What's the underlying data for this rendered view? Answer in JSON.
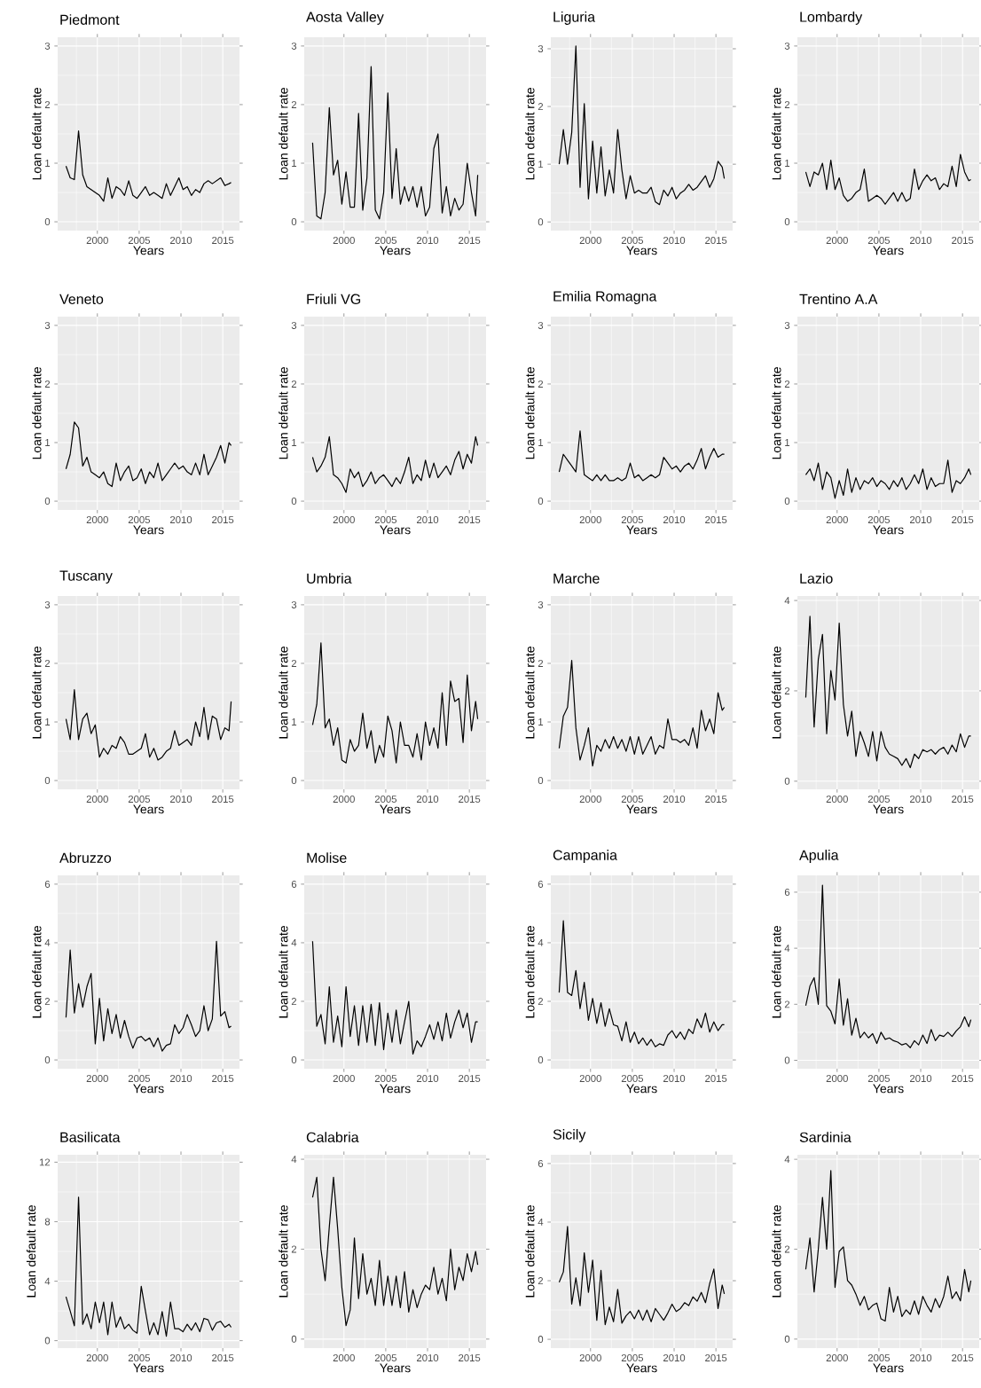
{
  "chart_data": [
    {
      "type": "line",
      "title": "Piedmont",
      "xlabel": "Years",
      "ylabel": "Loan default rate",
      "color": "#000000",
      "grid": true,
      "xlim": [
        1995.25,
        2017.0
      ],
      "ylim": [
        -0.15,
        3.15
      ],
      "xticks": [
        2000,
        2005,
        2010,
        2015
      ],
      "yticks": [
        0,
        1,
        2,
        3
      ],
      "x": [
        1996.25,
        1996.75,
        1997.25,
        1997.75,
        1998.25,
        1998.75,
        1999.25,
        1999.75,
        2000.25,
        2000.75,
        2001.25,
        2001.75,
        2002.25,
        2002.75,
        2003.25,
        2003.75,
        2004.25,
        2004.75,
        2005.25,
        2005.75,
        2006.25,
        2006.75,
        2007.25,
        2007.75,
        2008.25,
        2008.75,
        2009.25,
        2009.75,
        2010.25,
        2010.75,
        2011.25,
        2011.75,
        2012.25,
        2012.75,
        2013.25,
        2013.75,
        2014.25,
        2014.75,
        2015.25,
        2015.75,
        2016.0
      ],
      "values": [
        0.95,
        0.75,
        0.72,
        1.55,
        0.8,
        0.6,
        0.55,
        0.5,
        0.45,
        0.35,
        0.75,
        0.4,
        0.6,
        0.55,
        0.45,
        0.7,
        0.45,
        0.4,
        0.5,
        0.6,
        0.45,
        0.5,
        0.45,
        0.4,
        0.65,
        0.45,
        0.6,
        0.75,
        0.55,
        0.6,
        0.45,
        0.55,
        0.5,
        0.65,
        0.7,
        0.65,
        0.7,
        0.75,
        0.62,
        0.65,
        0.67
      ]
    },
    {
      "type": "line",
      "title": "Aosta Valley",
      "xlabel": "Years",
      "ylabel": "Loan default rate",
      "color": "#000000",
      "grid": true,
      "xlim": [
        1995.25,
        2017.0
      ],
      "ylim": [
        -0.15,
        3.15
      ],
      "xticks": [
        2000,
        2005,
        2010,
        2015
      ],
      "yticks": [
        0,
        1,
        2,
        3
      ],
      "x": [
        1996.25,
        1996.75,
        1997.25,
        1997.75,
        1998.25,
        1998.75,
        1999.25,
        1999.75,
        2000.25,
        2000.75,
        2001.25,
        2001.75,
        2002.25,
        2002.75,
        2003.25,
        2003.75,
        2004.25,
        2004.75,
        2005.25,
        2005.75,
        2006.25,
        2006.75,
        2007.25,
        2007.75,
        2008.25,
        2008.75,
        2009.25,
        2009.75,
        2010.25,
        2010.75,
        2011.25,
        2011.75,
        2012.25,
        2012.75,
        2013.25,
        2013.75,
        2014.25,
        2014.75,
        2015.25,
        2015.75,
        2016.0
      ],
      "values": [
        1.35,
        0.1,
        0.05,
        0.5,
        1.95,
        0.8,
        1.05,
        0.3,
        0.85,
        0.25,
        0.25,
        1.85,
        0.2,
        0.75,
        2.65,
        0.2,
        0.05,
        0.5,
        2.2,
        0.4,
        1.25,
        0.3,
        0.6,
        0.35,
        0.6,
        0.25,
        0.6,
        0.1,
        0.25,
        1.25,
        1.5,
        0.15,
        0.6,
        0.1,
        0.4,
        0.2,
        0.3,
        1.0,
        0.5,
        0.1,
        0.8
      ]
    },
    {
      "type": "line",
      "title": "Liguria",
      "xlabel": "Years",
      "ylabel": "Loan default rate",
      "color": "#000000",
      "grid": true,
      "xlim": [
        1995.25,
        2017.0
      ],
      "ylim": [
        -0.15,
        3.2
      ],
      "xticks": [
        2000,
        2005,
        2010,
        2015
      ],
      "yticks": [
        0,
        1,
        2,
        3
      ],
      "x": [
        1996.25,
        1996.75,
        1997.25,
        1997.75,
        1998.25,
        1998.75,
        1999.25,
        1999.75,
        2000.25,
        2000.75,
        2001.25,
        2001.75,
        2002.25,
        2002.75,
        2003.25,
        2003.75,
        2004.25,
        2004.75,
        2005.25,
        2005.75,
        2006.25,
        2006.75,
        2007.25,
        2007.75,
        2008.25,
        2008.75,
        2009.25,
        2009.75,
        2010.25,
        2010.75,
        2011.25,
        2011.75,
        2012.25,
        2012.75,
        2013.25,
        2013.75,
        2014.25,
        2014.75,
        2015.25,
        2015.75,
        2016.0
      ],
      "values": [
        1.0,
        1.6,
        1.0,
        1.55,
        3.05,
        0.6,
        2.05,
        0.4,
        1.4,
        0.5,
        1.3,
        0.45,
        0.9,
        0.5,
        1.6,
        0.9,
        0.4,
        0.8,
        0.5,
        0.55,
        0.5,
        0.5,
        0.6,
        0.35,
        0.3,
        0.55,
        0.45,
        0.6,
        0.4,
        0.5,
        0.55,
        0.65,
        0.55,
        0.6,
        0.7,
        0.8,
        0.6,
        0.75,
        1.05,
        0.95,
        0.75
      ]
    },
    {
      "type": "line",
      "title": "Lombardy",
      "xlabel": "Years",
      "ylabel": "Loan default rate",
      "color": "#000000",
      "grid": true,
      "xlim": [
        1995.25,
        2017.0
      ],
      "ylim": [
        -0.15,
        3.15
      ],
      "xticks": [
        2000,
        2005,
        2010,
        2015
      ],
      "yticks": [
        0,
        1,
        2,
        3
      ],
      "x": [
        1996.25,
        1996.75,
        1997.25,
        1997.75,
        1998.25,
        1998.75,
        1999.25,
        1999.75,
        2000.25,
        2000.75,
        2001.25,
        2001.75,
        2002.25,
        2002.75,
        2003.25,
        2003.75,
        2004.25,
        2004.75,
        2005.25,
        2005.75,
        2006.25,
        2006.75,
        2007.25,
        2007.75,
        2008.25,
        2008.75,
        2009.25,
        2009.75,
        2010.25,
        2010.75,
        2011.25,
        2011.75,
        2012.25,
        2012.75,
        2013.25,
        2013.75,
        2014.25,
        2014.75,
        2015.25,
        2015.75,
        2016.0
      ],
      "values": [
        0.85,
        0.6,
        0.85,
        0.8,
        1.0,
        0.55,
        1.05,
        0.55,
        0.75,
        0.45,
        0.35,
        0.4,
        0.5,
        0.55,
        0.9,
        0.35,
        0.4,
        0.45,
        0.4,
        0.3,
        0.4,
        0.5,
        0.35,
        0.5,
        0.35,
        0.4,
        0.9,
        0.55,
        0.7,
        0.8,
        0.7,
        0.75,
        0.55,
        0.65,
        0.6,
        0.95,
        0.6,
        1.15,
        0.85,
        0.7,
        0.72
      ]
    },
    {
      "type": "line",
      "title": "Veneto",
      "xlabel": "Years",
      "ylabel": "Loan default rate",
      "color": "#000000",
      "grid": true,
      "xlim": [
        1995.25,
        2017.0
      ],
      "ylim": [
        -0.15,
        3.15
      ],
      "xticks": [
        2000,
        2005,
        2010,
        2015
      ],
      "yticks": [
        0,
        1,
        2,
        3
      ],
      "x": [
        1996.25,
        1996.75,
        1997.25,
        1997.75,
        1998.25,
        1998.75,
        1999.25,
        1999.75,
        2000.25,
        2000.75,
        2001.25,
        2001.75,
        2002.25,
        2002.75,
        2003.25,
        2003.75,
        2004.25,
        2004.75,
        2005.25,
        2005.75,
        2006.25,
        2006.75,
        2007.25,
        2007.75,
        2008.25,
        2008.75,
        2009.25,
        2009.75,
        2010.25,
        2010.75,
        2011.25,
        2011.75,
        2012.25,
        2012.75,
        2013.25,
        2013.75,
        2014.25,
        2014.75,
        2015.25,
        2015.75,
        2016.0
      ],
      "values": [
        0.55,
        0.8,
        1.35,
        1.25,
        0.6,
        0.75,
        0.5,
        0.45,
        0.4,
        0.5,
        0.3,
        0.25,
        0.65,
        0.35,
        0.5,
        0.6,
        0.35,
        0.4,
        0.55,
        0.3,
        0.5,
        0.4,
        0.65,
        0.35,
        0.45,
        0.55,
        0.65,
        0.55,
        0.6,
        0.5,
        0.45,
        0.65,
        0.45,
        0.8,
        0.45,
        0.6,
        0.75,
        0.95,
        0.65,
        1.0,
        0.95
      ]
    },
    {
      "type": "line",
      "title": "Friuli VG",
      "xlabel": "Years",
      "ylabel": "Loan default rate",
      "color": "#000000",
      "grid": true,
      "xlim": [
        1995.25,
        2017.0
      ],
      "ylim": [
        -0.15,
        3.15
      ],
      "xticks": [
        2000,
        2005,
        2010,
        2015
      ],
      "yticks": [
        0,
        1,
        2,
        3
      ],
      "x": [
        1996.25,
        1996.75,
        1997.25,
        1997.75,
        1998.25,
        1998.75,
        1999.25,
        1999.75,
        2000.25,
        2000.75,
        2001.25,
        2001.75,
        2002.25,
        2002.75,
        2003.25,
        2003.75,
        2004.25,
        2004.75,
        2005.25,
        2005.75,
        2006.25,
        2006.75,
        2007.25,
        2007.75,
        2008.25,
        2008.75,
        2009.25,
        2009.75,
        2010.25,
        2010.75,
        2011.25,
        2011.75,
        2012.25,
        2012.75,
        2013.25,
        2013.75,
        2014.25,
        2014.75,
        2015.25,
        2015.75,
        2016.0
      ],
      "values": [
        0.75,
        0.5,
        0.6,
        0.75,
        1.1,
        0.45,
        0.4,
        0.3,
        0.15,
        0.55,
        0.4,
        0.5,
        0.25,
        0.35,
        0.5,
        0.3,
        0.4,
        0.45,
        0.35,
        0.25,
        0.4,
        0.3,
        0.5,
        0.75,
        0.3,
        0.45,
        0.35,
        0.7,
        0.4,
        0.65,
        0.4,
        0.5,
        0.6,
        0.45,
        0.7,
        0.85,
        0.55,
        0.8,
        0.65,
        1.1,
        0.95
      ]
    },
    {
      "type": "line",
      "title": "Emilia Romagna",
      "xlabel": "Years",
      "ylabel": "Loan default rate",
      "color": "#000000",
      "grid": true,
      "xlim": [
        1995.25,
        2017.0
      ],
      "ylim": [
        -0.15,
        3.15
      ],
      "xticks": [
        2000,
        2005,
        2010,
        2015
      ],
      "yticks": [
        0,
        1,
        2,
        3
      ],
      "x": [
        1996.25,
        1996.75,
        1997.25,
        1997.75,
        1998.25,
        1998.75,
        1999.25,
        1999.75,
        2000.25,
        2000.75,
        2001.25,
        2001.75,
        2002.25,
        2002.75,
        2003.25,
        2003.75,
        2004.25,
        2004.75,
        2005.25,
        2005.75,
        2006.25,
        2006.75,
        2007.25,
        2007.75,
        2008.25,
        2008.75,
        2009.25,
        2009.75,
        2010.25,
        2010.75,
        2011.25,
        2011.75,
        2012.25,
        2012.75,
        2013.25,
        2013.75,
        2014.25,
        2014.75,
        2015.25,
        2015.75,
        2016.0
      ],
      "values": [
        0.5,
        0.8,
        0.7,
        0.6,
        0.5,
        1.2,
        0.45,
        0.4,
        0.35,
        0.45,
        0.35,
        0.45,
        0.35,
        0.35,
        0.4,
        0.35,
        0.4,
        0.65,
        0.4,
        0.45,
        0.35,
        0.4,
        0.45,
        0.4,
        0.45,
        0.75,
        0.65,
        0.55,
        0.6,
        0.5,
        0.6,
        0.65,
        0.55,
        0.7,
        0.9,
        0.55,
        0.75,
        0.9,
        0.75,
        0.8,
        0.8
      ]
    },
    {
      "type": "line",
      "title": "Trentino A.A",
      "xlabel": "Years",
      "ylabel": "Loan default rate",
      "color": "#000000",
      "grid": true,
      "xlim": [
        1995.25,
        2017.0
      ],
      "ylim": [
        -0.15,
        3.15
      ],
      "xticks": [
        2000,
        2005,
        2010,
        2015
      ],
      "yticks": [
        0,
        1,
        2,
        3
      ],
      "x": [
        1996.25,
        1996.75,
        1997.25,
        1997.75,
        1998.25,
        1998.75,
        1999.25,
        1999.75,
        2000.25,
        2000.75,
        2001.25,
        2001.75,
        2002.25,
        2002.75,
        2003.25,
        2003.75,
        2004.25,
        2004.75,
        2005.25,
        2005.75,
        2006.25,
        2006.75,
        2007.25,
        2007.75,
        2008.25,
        2008.75,
        2009.25,
        2009.75,
        2010.25,
        2010.75,
        2011.25,
        2011.75,
        2012.25,
        2012.75,
        2013.25,
        2013.75,
        2014.25,
        2014.75,
        2015.25,
        2015.75,
        2016.0
      ],
      "values": [
        0.45,
        0.55,
        0.35,
        0.65,
        0.2,
        0.5,
        0.4,
        0.05,
        0.35,
        0.1,
        0.55,
        0.15,
        0.4,
        0.2,
        0.35,
        0.3,
        0.4,
        0.25,
        0.35,
        0.3,
        0.2,
        0.35,
        0.25,
        0.4,
        0.2,
        0.3,
        0.45,
        0.3,
        0.55,
        0.2,
        0.4,
        0.25,
        0.3,
        0.3,
        0.7,
        0.15,
        0.35,
        0.3,
        0.4,
        0.55,
        0.45
      ]
    },
    {
      "type": "line",
      "title": "Tuscany",
      "xlabel": "Years",
      "ylabel": "Loan default rate",
      "color": "#000000",
      "grid": true,
      "xlim": [
        1995.25,
        2017.0
      ],
      "ylim": [
        -0.15,
        3.15
      ],
      "xticks": [
        2000,
        2005,
        2010,
        2015
      ],
      "yticks": [
        0,
        1,
        2,
        3
      ],
      "x": [
        1996.25,
        1996.75,
        1997.25,
        1997.75,
        1998.25,
        1998.75,
        1999.25,
        1999.75,
        2000.25,
        2000.75,
        2001.25,
        2001.75,
        2002.25,
        2002.75,
        2003.25,
        2003.75,
        2004.25,
        2004.75,
        2005.25,
        2005.75,
        2006.25,
        2006.75,
        2007.25,
        2007.75,
        2008.25,
        2008.75,
        2009.25,
        2009.75,
        2010.25,
        2010.75,
        2011.25,
        2011.75,
        2012.25,
        2012.75,
        2013.25,
        2013.75,
        2014.25,
        2014.75,
        2015.25,
        2015.75,
        2016.0
      ],
      "values": [
        1.05,
        0.7,
        1.55,
        0.7,
        1.05,
        1.15,
        0.8,
        0.95,
        0.4,
        0.55,
        0.45,
        0.6,
        0.55,
        0.75,
        0.65,
        0.45,
        0.45,
        0.5,
        0.55,
        0.8,
        0.4,
        0.55,
        0.35,
        0.4,
        0.5,
        0.55,
        0.85,
        0.6,
        0.65,
        0.7,
        0.6,
        1.0,
        0.75,
        1.25,
        0.7,
        1.1,
        1.05,
        0.7,
        0.9,
        0.85,
        1.35
      ]
    },
    {
      "type": "line",
      "title": "Umbria",
      "xlabel": "Years",
      "ylabel": "Loan default rate",
      "color": "#000000",
      "grid": true,
      "xlim": [
        1995.25,
        2017.0
      ],
      "ylim": [
        -0.15,
        3.15
      ],
      "xticks": [
        2000,
        2005,
        2010,
        2015
      ],
      "yticks": [
        0,
        1,
        2,
        3
      ],
      "x": [
        1996.25,
        1996.75,
        1997.25,
        1997.75,
        1998.25,
        1998.75,
        1999.25,
        1999.75,
        2000.25,
        2000.75,
        2001.25,
        2001.75,
        2002.25,
        2002.75,
        2003.25,
        2003.75,
        2004.25,
        2004.75,
        2005.25,
        2005.75,
        2006.25,
        2006.75,
        2007.25,
        2007.75,
        2008.25,
        2008.75,
        2009.25,
        2009.75,
        2010.25,
        2010.75,
        2011.25,
        2011.75,
        2012.25,
        2012.75,
        2013.25,
        2013.75,
        2014.25,
        2014.75,
        2015.25,
        2015.75,
        2016.0
      ],
      "values": [
        0.95,
        1.3,
        2.35,
        0.9,
        1.05,
        0.6,
        0.9,
        0.35,
        0.3,
        0.7,
        0.5,
        0.6,
        1.15,
        0.55,
        0.85,
        0.3,
        0.6,
        0.4,
        1.1,
        0.85,
        0.3,
        1.0,
        0.6,
        0.6,
        0.4,
        0.8,
        0.35,
        1.0,
        0.6,
        0.9,
        0.55,
        1.5,
        0.6,
        1.7,
        1.35,
        1.4,
        0.65,
        1.8,
        0.85,
        1.35,
        1.05
      ]
    },
    {
      "type": "line",
      "title": "Marche",
      "xlabel": "Years",
      "ylabel": "Loan default rate",
      "color": "#000000",
      "grid": true,
      "xlim": [
        1995.25,
        2017.0
      ],
      "ylim": [
        -0.15,
        3.15
      ],
      "xticks": [
        2000,
        2005,
        2010,
        2015
      ],
      "yticks": [
        0,
        1,
        2,
        3
      ],
      "x": [
        1996.25,
        1996.75,
        1997.25,
        1997.75,
        1998.25,
        1998.75,
        1999.25,
        1999.75,
        2000.25,
        2000.75,
        2001.25,
        2001.75,
        2002.25,
        2002.75,
        2003.25,
        2003.75,
        2004.25,
        2004.75,
        2005.25,
        2005.75,
        2006.25,
        2006.75,
        2007.25,
        2007.75,
        2008.25,
        2008.75,
        2009.25,
        2009.75,
        2010.25,
        2010.75,
        2011.25,
        2011.75,
        2012.25,
        2012.75,
        2013.25,
        2013.75,
        2014.25,
        2014.75,
        2015.25,
        2015.75,
        2016.0
      ],
      "values": [
        0.55,
        1.1,
        1.25,
        2.05,
        0.9,
        0.35,
        0.6,
        0.9,
        0.25,
        0.6,
        0.5,
        0.7,
        0.55,
        0.75,
        0.55,
        0.7,
        0.5,
        0.75,
        0.45,
        0.75,
        0.45,
        0.6,
        0.75,
        0.45,
        0.6,
        0.55,
        1.05,
        0.7,
        0.7,
        0.65,
        0.7,
        0.6,
        0.9,
        0.55,
        1.2,
        0.85,
        1.05,
        0.8,
        1.5,
        1.2,
        1.25
      ]
    },
    {
      "type": "line",
      "title": "Lazio",
      "xlabel": "Years",
      "ylabel": "Loan default rate",
      "color": "#000000",
      "grid": true,
      "xlim": [
        1995.25,
        2017.0
      ],
      "ylim": [
        -0.18,
        4.1
      ],
      "xticks": [
        2000,
        2005,
        2010,
        2015
      ],
      "yticks": [
        0,
        2,
        4
      ],
      "x": [
        1996.25,
        1996.75,
        1997.25,
        1997.75,
        1998.25,
        1998.75,
        1999.25,
        1999.75,
        2000.25,
        2000.75,
        2001.25,
        2001.75,
        2002.25,
        2002.75,
        2003.25,
        2003.75,
        2004.25,
        2004.75,
        2005.25,
        2005.75,
        2006.25,
        2006.75,
        2007.25,
        2007.75,
        2008.25,
        2008.75,
        2009.25,
        2009.75,
        2010.25,
        2010.75,
        2011.25,
        2011.75,
        2012.25,
        2012.75,
        2013.25,
        2013.75,
        2014.25,
        2014.75,
        2015.25,
        2015.75,
        2016.0
      ],
      "values": [
        1.85,
        3.65,
        1.2,
        2.7,
        3.25,
        1.05,
        2.45,
        1.8,
        3.5,
        1.7,
        1.0,
        1.55,
        0.55,
        1.1,
        0.85,
        0.55,
        1.1,
        0.45,
        1.1,
        0.75,
        0.6,
        0.55,
        0.5,
        0.35,
        0.5,
        0.3,
        0.6,
        0.5,
        0.7,
        0.65,
        0.7,
        0.6,
        0.7,
        0.75,
        0.6,
        0.8,
        0.65,
        1.05,
        0.75,
        1.0,
        1.0
      ]
    },
    {
      "type": "line",
      "title": "Abruzzo",
      "xlabel": "Years",
      "ylabel": "Loan default rate",
      "color": "#000000",
      "grid": true,
      "xlim": [
        1995.25,
        2017.0
      ],
      "ylim": [
        -0.3,
        6.3
      ],
      "xticks": [
        2000,
        2005,
        2010,
        2015
      ],
      "yticks": [
        0,
        2,
        4,
        6
      ],
      "x": [
        1996.25,
        1996.75,
        1997.25,
        1997.75,
        1998.25,
        1998.75,
        1999.25,
        1999.75,
        2000.25,
        2000.75,
        2001.25,
        2001.75,
        2002.25,
        2002.75,
        2003.25,
        2003.75,
        2004.25,
        2004.75,
        2005.25,
        2005.75,
        2006.25,
        2006.75,
        2007.25,
        2007.75,
        2008.25,
        2008.75,
        2009.25,
        2009.75,
        2010.25,
        2010.75,
        2011.25,
        2011.75,
        2012.25,
        2012.75,
        2013.25,
        2013.75,
        2014.25,
        2014.75,
        2015.25,
        2015.75,
        2016.0
      ],
      "values": [
        1.45,
        3.75,
        1.6,
        2.6,
        1.8,
        2.5,
        2.95,
        0.55,
        2.1,
        0.65,
        1.75,
        0.9,
        1.55,
        0.75,
        1.35,
        0.8,
        0.4,
        0.75,
        0.8,
        0.65,
        0.75,
        0.45,
        0.75,
        0.3,
        0.5,
        0.55,
        1.2,
        0.9,
        1.1,
        1.55,
        1.2,
        0.8,
        1.0,
        1.85,
        1.0,
        1.4,
        4.05,
        1.5,
        1.65,
        1.1,
        1.15
      ]
    },
    {
      "type": "line",
      "title": "Molise",
      "xlabel": "Years",
      "ylabel": "Loan default rate",
      "color": "#000000",
      "grid": true,
      "xlim": [
        1995.25,
        2017.0
      ],
      "ylim": [
        -0.3,
        6.3
      ],
      "xticks": [
        2000,
        2005,
        2010,
        2015
      ],
      "yticks": [
        0,
        2,
        4,
        6
      ],
      "x": [
        1996.25,
        1996.75,
        1997.25,
        1997.75,
        1998.25,
        1998.75,
        1999.25,
        1999.75,
        2000.25,
        2000.75,
        2001.25,
        2001.75,
        2002.25,
        2002.75,
        2003.25,
        2003.75,
        2004.25,
        2004.75,
        2005.25,
        2005.75,
        2006.25,
        2006.75,
        2007.25,
        2007.75,
        2008.25,
        2008.75,
        2009.25,
        2009.75,
        2010.25,
        2010.75,
        2011.25,
        2011.75,
        2012.25,
        2012.75,
        2013.25,
        2013.75,
        2014.25,
        2014.75,
        2015.25,
        2015.75,
        2016.0
      ],
      "values": [
        4.05,
        1.15,
        1.55,
        0.55,
        2.5,
        0.6,
        1.5,
        0.45,
        2.5,
        0.8,
        1.85,
        0.5,
        1.85,
        0.6,
        1.9,
        0.5,
        1.95,
        0.35,
        1.6,
        0.6,
        1.7,
        0.55,
        1.3,
        2.0,
        0.2,
        0.65,
        0.45,
        0.8,
        1.2,
        0.7,
        1.3,
        0.65,
        1.6,
        0.75,
        1.3,
        1.7,
        1.1,
        1.6,
        0.6,
        1.3,
        1.3
      ]
    },
    {
      "type": "line",
      "title": "Campania",
      "xlabel": "Years",
      "ylabel": "Loan default rate",
      "color": "#000000",
      "grid": true,
      "xlim": [
        1995.25,
        2017.0
      ],
      "ylim": [
        -0.3,
        6.3
      ],
      "xticks": [
        2000,
        2005,
        2010,
        2015
      ],
      "yticks": [
        0,
        2,
        4,
        6
      ],
      "x": [
        1996.25,
        1996.75,
        1997.25,
        1997.75,
        1998.25,
        1998.75,
        1999.25,
        1999.75,
        2000.25,
        2000.75,
        2001.25,
        2001.75,
        2002.25,
        2002.75,
        2003.25,
        2003.75,
        2004.25,
        2004.75,
        2005.25,
        2005.75,
        2006.25,
        2006.75,
        2007.25,
        2007.75,
        2008.25,
        2008.75,
        2009.25,
        2009.75,
        2010.25,
        2010.75,
        2011.25,
        2011.75,
        2012.25,
        2012.75,
        2013.25,
        2013.75,
        2014.25,
        2014.75,
        2015.25,
        2015.75,
        2016.0
      ],
      "values": [
        2.3,
        4.75,
        2.3,
        2.2,
        3.05,
        1.75,
        2.65,
        1.35,
        2.1,
        1.25,
        1.95,
        1.15,
        1.75,
        1.2,
        1.15,
        0.65,
        1.3,
        0.6,
        0.95,
        0.55,
        0.75,
        0.5,
        0.7,
        0.45,
        0.55,
        0.5,
        0.85,
        1.0,
        0.75,
        0.95,
        0.7,
        1.05,
        0.9,
        1.4,
        1.1,
        1.6,
        0.95,
        1.3,
        1.0,
        1.2,
        1.2
      ]
    },
    {
      "type": "line",
      "title": "Apulia",
      "xlabel": "Years",
      "ylabel": "Loan default rate",
      "color": "#000000",
      "grid": true,
      "xlim": [
        1995.25,
        2017.0
      ],
      "ylim": [
        -0.3,
        6.6
      ],
      "xticks": [
        2000,
        2005,
        2010,
        2015
      ],
      "yticks": [
        0,
        2,
        4,
        6
      ],
      "x": [
        1996.25,
        1996.75,
        1997.25,
        1997.75,
        1998.25,
        1998.75,
        1999.25,
        1999.75,
        2000.25,
        2000.75,
        2001.25,
        2001.75,
        2002.25,
        2002.75,
        2003.25,
        2003.75,
        2004.25,
        2004.75,
        2005.25,
        2005.75,
        2006.25,
        2006.75,
        2007.25,
        2007.75,
        2008.25,
        2008.75,
        2009.25,
        2009.75,
        2010.25,
        2010.75,
        2011.25,
        2011.75,
        2012.25,
        2012.75,
        2013.25,
        2013.75,
        2014.25,
        2014.75,
        2015.25,
        2015.75,
        2016.0
      ],
      "values": [
        1.95,
        2.65,
        2.95,
        2.0,
        6.25,
        1.95,
        1.75,
        1.3,
        2.9,
        1.25,
        2.2,
        0.9,
        1.5,
        0.8,
        1.0,
        0.8,
        0.95,
        0.6,
        1.0,
        0.75,
        0.8,
        0.7,
        0.65,
        0.55,
        0.6,
        0.45,
        0.7,
        0.55,
        0.9,
        0.6,
        1.1,
        0.7,
        0.9,
        0.85,
        1.0,
        0.85,
        1.05,
        1.2,
        1.55,
        1.2,
        1.45
      ]
    },
    {
      "type": "line",
      "title": "Basilicata",
      "xlabel": "Years",
      "ylabel": "Loan default rate",
      "color": "#000000",
      "grid": true,
      "xlim": [
        1995.25,
        2017.0
      ],
      "ylim": [
        -0.5,
        12.5
      ],
      "xticks": [
        2000,
        2005,
        2010,
        2015
      ],
      "yticks": [
        0,
        4,
        8,
        12
      ],
      "x": [
        1996.25,
        1996.75,
        1997.25,
        1997.75,
        1998.25,
        1998.75,
        1999.25,
        1999.75,
        2000.25,
        2000.75,
        2001.25,
        2001.75,
        2002.25,
        2002.75,
        2003.25,
        2003.75,
        2004.25,
        2004.75,
        2005.25,
        2005.75,
        2006.25,
        2006.75,
        2007.25,
        2007.75,
        2008.25,
        2008.75,
        2009.25,
        2009.75,
        2010.25,
        2010.75,
        2011.25,
        2011.75,
        2012.25,
        2012.75,
        2013.25,
        2013.75,
        2014.25,
        2014.75,
        2015.25,
        2015.75,
        2016.0
      ],
      "values": [
        2.95,
        2.0,
        1.0,
        9.65,
        1.1,
        1.8,
        0.8,
        2.6,
        1.2,
        2.6,
        0.4,
        2.6,
        0.9,
        1.6,
        0.8,
        1.1,
        0.7,
        0.5,
        3.65,
        2.0,
        0.4,
        1.2,
        0.4,
        1.95,
        0.3,
        2.6,
        0.8,
        0.8,
        0.6,
        1.1,
        0.7,
        1.2,
        0.6,
        1.5,
        1.4,
        0.7,
        1.2,
        1.3,
        0.9,
        1.1,
        0.9
      ]
    },
    {
      "type": "line",
      "title": "Calabria",
      "xlabel": "Years",
      "ylabel": "Loan default rate",
      "color": "#000000",
      "grid": true,
      "xlim": [
        1995.25,
        2017.0
      ],
      "ylim": [
        -0.2,
        4.1
      ],
      "xticks": [
        2000,
        2005,
        2010,
        2015
      ],
      "yticks": [
        0,
        2,
        4
      ],
      "x": [
        1996.25,
        1996.75,
        1997.25,
        1997.75,
        1998.25,
        1998.75,
        1999.25,
        1999.75,
        2000.25,
        2000.75,
        2001.25,
        2001.75,
        2002.25,
        2002.75,
        2003.25,
        2003.75,
        2004.25,
        2004.75,
        2005.25,
        2005.75,
        2006.25,
        2006.75,
        2007.25,
        2007.75,
        2008.25,
        2008.75,
        2009.25,
        2009.75,
        2010.25,
        2010.75,
        2011.25,
        2011.75,
        2012.25,
        2012.75,
        2013.25,
        2013.75,
        2014.25,
        2014.75,
        2015.25,
        2015.75,
        2016.0
      ],
      "values": [
        3.15,
        3.6,
        2.0,
        1.3,
        2.5,
        3.6,
        2.45,
        1.15,
        0.3,
        0.65,
        2.25,
        0.9,
        1.9,
        1.0,
        1.35,
        0.75,
        1.75,
        0.75,
        1.4,
        0.75,
        1.4,
        0.7,
        1.5,
        0.6,
        1.1,
        0.7,
        1.0,
        1.2,
        1.1,
        1.6,
        1.0,
        1.35,
        0.85,
        2.0,
        1.1,
        1.6,
        1.3,
        1.9,
        1.5,
        1.95,
        1.65
      ]
    },
    {
      "type": "line",
      "title": "Sicily",
      "xlabel": "Years",
      "ylabel": "Loan default rate",
      "color": "#000000",
      "grid": true,
      "xlim": [
        1995.25,
        2017.0
      ],
      "ylim": [
        -0.3,
        6.3
      ],
      "xticks": [
        2000,
        2005,
        2010,
        2015
      ],
      "yticks": [
        0,
        2,
        4,
        6
      ],
      "x": [
        1996.25,
        1996.75,
        1997.25,
        1997.75,
        1998.25,
        1998.75,
        1999.25,
        1999.75,
        2000.25,
        2000.75,
        2001.25,
        2001.75,
        2002.25,
        2002.75,
        2003.25,
        2003.75,
        2004.25,
        2004.75,
        2005.25,
        2005.75,
        2006.25,
        2006.75,
        2007.25,
        2007.75,
        2008.25,
        2008.75,
        2009.25,
        2009.75,
        2010.25,
        2010.75,
        2011.25,
        2011.75,
        2012.25,
        2012.75,
        2013.25,
        2013.75,
        2014.25,
        2014.75,
        2015.25,
        2015.75,
        2016.0
      ],
      "values": [
        1.95,
        2.3,
        3.85,
        1.2,
        2.1,
        1.15,
        2.95,
        1.6,
        2.7,
        0.65,
        2.35,
        0.5,
        1.1,
        0.6,
        1.7,
        0.55,
        0.8,
        0.95,
        0.7,
        1.0,
        0.65,
        1.0,
        0.6,
        1.05,
        0.85,
        0.65,
        0.9,
        1.2,
        0.95,
        1.05,
        1.25,
        1.15,
        1.45,
        1.3,
        1.6,
        1.25,
        1.9,
        2.4,
        1.05,
        1.85,
        1.55
      ]
    },
    {
      "type": "line",
      "title": "Sardinia",
      "xlabel": "Years",
      "ylabel": "Loan default rate",
      "color": "#000000",
      "grid": true,
      "xlim": [
        1995.25,
        2017.0
      ],
      "ylim": [
        -0.2,
        4.1
      ],
      "xticks": [
        2000,
        2005,
        2010,
        2015
      ],
      "yticks": [
        0,
        2,
        4
      ],
      "x": [
        1996.25,
        1996.75,
        1997.25,
        1997.75,
        1998.25,
        1998.75,
        1999.25,
        1999.75,
        2000.25,
        2000.75,
        2001.25,
        2001.75,
        2002.25,
        2002.75,
        2003.25,
        2003.75,
        2004.25,
        2004.75,
        2005.25,
        2005.75,
        2006.25,
        2006.75,
        2007.25,
        2007.75,
        2008.25,
        2008.75,
        2009.25,
        2009.75,
        2010.25,
        2010.75,
        2011.25,
        2011.75,
        2012.25,
        2012.75,
        2013.25,
        2013.75,
        2014.25,
        2014.75,
        2015.25,
        2015.75,
        2016.0
      ],
      "values": [
        1.55,
        2.25,
        1.05,
        2.0,
        3.15,
        2.0,
        3.75,
        1.15,
        1.95,
        2.05,
        1.3,
        1.2,
        1.0,
        0.75,
        0.95,
        0.65,
        0.75,
        0.8,
        0.45,
        0.4,
        1.15,
        0.6,
        0.95,
        0.5,
        0.65,
        0.55,
        0.85,
        0.55,
        0.95,
        0.75,
        0.6,
        0.9,
        0.7,
        0.95,
        1.4,
        0.9,
        1.05,
        0.85,
        1.55,
        1.05,
        1.3
      ]
    }
  ]
}
